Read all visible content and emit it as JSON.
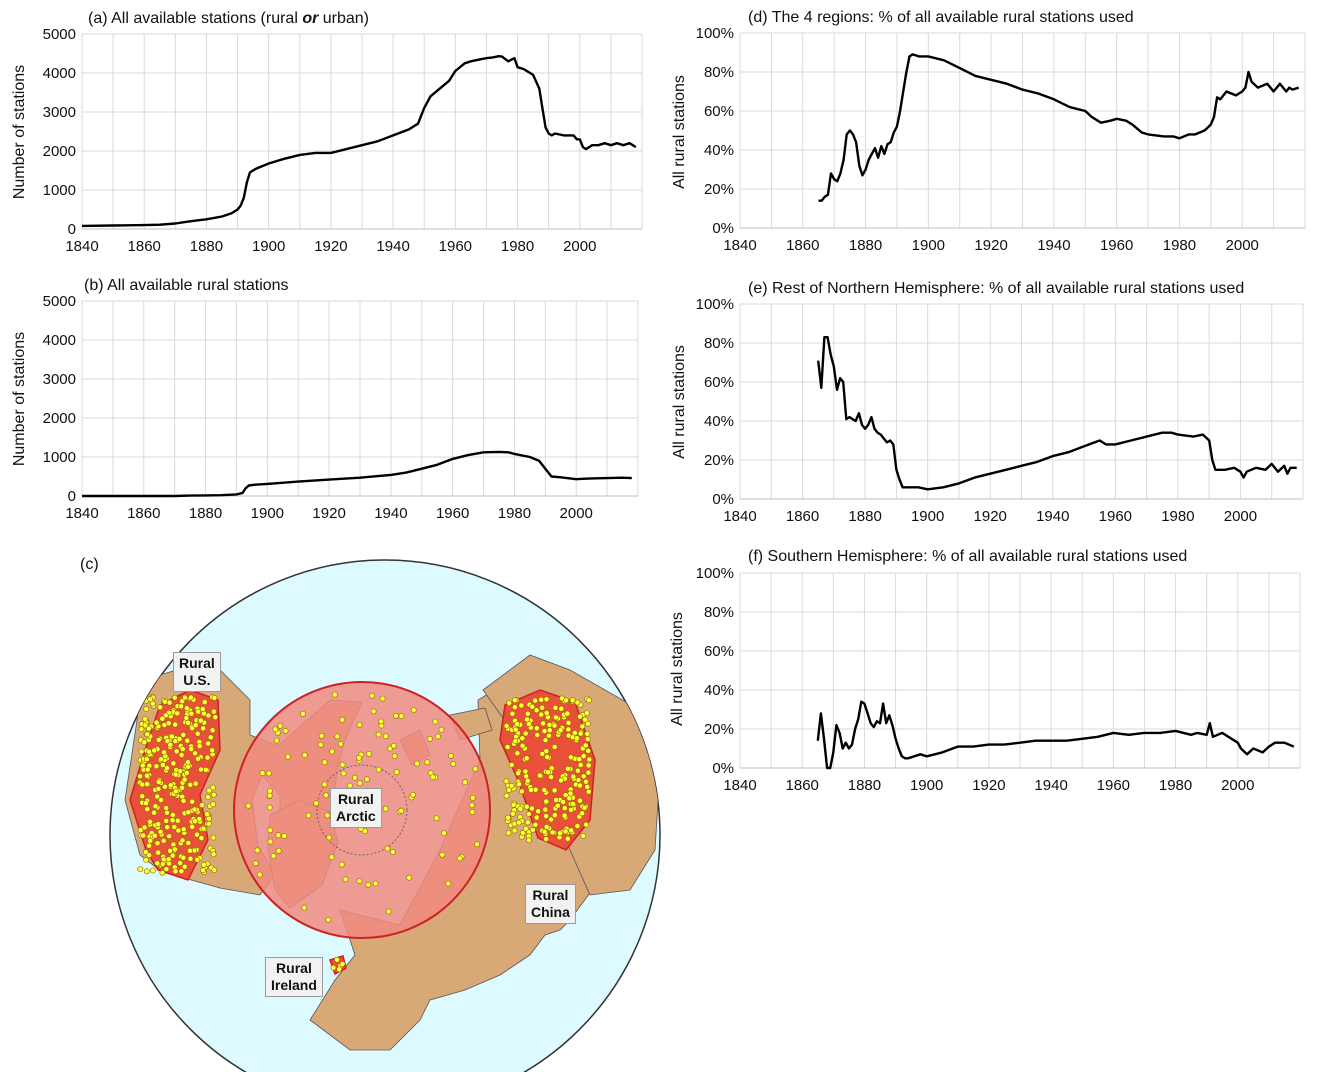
{
  "panels": {
    "a": {
      "title_prefix": "(a) All available stations (rural ",
      "title_em": "or",
      "title_suffix": " urban)",
      "ylabel": "Number of stations"
    },
    "b": {
      "title": "(b) All available rural stations",
      "ylabel": "Number of stations"
    },
    "c": {
      "label": "(c)"
    },
    "d": {
      "title": "(d) The 4 regions: % of all available rural stations used",
      "ylabel": "All rural stations"
    },
    "e": {
      "title": "(e) Rest of Northern Hemisphere: % of all available rural stations used",
      "ylabel": "All rural stations"
    },
    "f": {
      "title": "(f) Southern Hemisphere: % of all available rural stations used",
      "ylabel": "All rural stations"
    }
  },
  "map": {
    "labels": {
      "us": [
        "Rural",
        "U.S."
      ],
      "arctic": [
        "Rural",
        "Arctic"
      ],
      "ireland": [
        "Rural",
        "Ireland"
      ],
      "china": [
        "Rural",
        "China"
      ]
    },
    "colors": {
      "ocean": "#dcfaff",
      "land": "#d9a877",
      "region": "#e8503a",
      "arctic_disk": "#f08a80",
      "station": "#ffff33"
    }
  },
  "chart_data": [
    {
      "id": "a",
      "type": "line",
      "xlim": [
        1840,
        2020
      ],
      "ylim": [
        0,
        5000
      ],
      "xticks": [
        1840,
        1860,
        1880,
        1900,
        1920,
        1940,
        1960,
        1980,
        2000
      ],
      "yticks": [
        "0",
        "1000",
        "2000",
        "3000",
        "4000",
        "5000"
      ],
      "x": [
        1840,
        1850,
        1860,
        1865,
        1870,
        1875,
        1880,
        1885,
        1888,
        1890,
        1891,
        1892,
        1893,
        1894,
        1896,
        1900,
        1905,
        1910,
        1915,
        1920,
        1925,
        1930,
        1935,
        1940,
        1945,
        1948,
        1950,
        1952,
        1955,
        1958,
        1960,
        1963,
        1965,
        1968,
        1970,
        1972,
        1974,
        1975,
        1977,
        1979,
        1980,
        1982,
        1985,
        1987,
        1988,
        1989,
        1990,
        1991,
        1992,
        1995,
        1998,
        1999,
        2000,
        2001,
        2002,
        2004,
        2006,
        2008,
        2010,
        2012,
        2014,
        2016,
        2018
      ],
      "y": [
        80,
        90,
        100,
        110,
        140,
        200,
        250,
        320,
        400,
        500,
        600,
        800,
        1200,
        1450,
        1550,
        1680,
        1800,
        1900,
        1950,
        1950,
        2050,
        2150,
        2250,
        2400,
        2550,
        2700,
        3100,
        3400,
        3600,
        3800,
        4050,
        4250,
        4300,
        4350,
        4380,
        4400,
        4430,
        4420,
        4300,
        4380,
        4150,
        4100,
        3950,
        3600,
        3100,
        2600,
        2450,
        2400,
        2450,
        2400,
        2400,
        2300,
        2300,
        2100,
        2050,
        2150,
        2150,
        2200,
        2150,
        2200,
        2150,
        2200,
        2100
      ]
    },
    {
      "id": "b",
      "type": "line",
      "xlim": [
        1840,
        2020
      ],
      "ylim": [
        0,
        5000
      ],
      "xticks": [
        1840,
        1860,
        1880,
        1900,
        1920,
        1940,
        1960,
        1980,
        2000
      ],
      "yticks": [
        "0",
        "1000",
        "2000",
        "3000",
        "4000",
        "5000"
      ],
      "x": [
        1840,
        1870,
        1875,
        1880,
        1885,
        1890,
        1892,
        1893,
        1894,
        1896,
        1900,
        1910,
        1920,
        1930,
        1940,
        1945,
        1950,
        1955,
        1960,
        1965,
        1970,
        1975,
        1978,
        1980,
        1985,
        1988,
        1990,
        1992,
        1995,
        2000,
        2002,
        2005,
        2010,
        2015,
        2018
      ],
      "y": [
        0,
        0,
        10,
        15,
        20,
        40,
        80,
        200,
        270,
        290,
        310,
        370,
        420,
        470,
        540,
        600,
        700,
        800,
        950,
        1050,
        1120,
        1130,
        1120,
        1080,
        1000,
        900,
        700,
        500,
        480,
        430,
        440,
        450,
        460,
        470,
        460
      ]
    },
    {
      "id": "d",
      "type": "line",
      "xlim": [
        1840,
        2020
      ],
      "ylim": [
        0,
        100
      ],
      "xticks": [
        1840,
        1860,
        1880,
        1900,
        1920,
        1940,
        1960,
        1980,
        2000
      ],
      "yticks": [
        "0%",
        "20%",
        "40%",
        "60%",
        "80%",
        "100%"
      ],
      "x": [
        1865,
        1866,
        1867,
        1868,
        1869,
        1870,
        1871,
        1872,
        1873,
        1874,
        1875,
        1876,
        1877,
        1878,
        1879,
        1880,
        1881,
        1882,
        1883,
        1884,
        1885,
        1886,
        1887,
        1888,
        1889,
        1890,
        1891,
        1892,
        1893,
        1894,
        1895,
        1897,
        1900,
        1905,
        1910,
        1915,
        1920,
        1925,
        1930,
        1935,
        1940,
        1945,
        1950,
        1952,
        1955,
        1958,
        1960,
        1963,
        1965,
        1968,
        1970,
        1975,
        1978,
        1980,
        1983,
        1985,
        1988,
        1990,
        1991,
        1992,
        1993,
        1995,
        1998,
        2000,
        2001,
        2002,
        2003,
        2005,
        2008,
        2010,
        2012,
        2014,
        2015,
        2016,
        2018
      ],
      "y": [
        14,
        14,
        16,
        17,
        28,
        25,
        24,
        28,
        35,
        48,
        50,
        48,
        44,
        32,
        27,
        30,
        35,
        38,
        41,
        36,
        42,
        38,
        43,
        44,
        49,
        52,
        60,
        70,
        80,
        88,
        89,
        88,
        88,
        86,
        82,
        78,
        76,
        74,
        71,
        69,
        66,
        62,
        60,
        57,
        54,
        55,
        56,
        55,
        53,
        49,
        48,
        47,
        47,
        46,
        48,
        48,
        50,
        53,
        57,
        67,
        66,
        70,
        68,
        70,
        72,
        80,
        75,
        72,
        74,
        70,
        74,
        70,
        72,
        71,
        72
      ]
    },
    {
      "id": "e",
      "type": "line",
      "xlim": [
        1840,
        2020
      ],
      "ylim": [
        0,
        100
      ],
      "xticks": [
        1840,
        1860,
        1880,
        1900,
        1920,
        1940,
        1960,
        1980,
        2000
      ],
      "yticks": [
        "0%",
        "20%",
        "40%",
        "60%",
        "80%",
        "100%"
      ],
      "x": [
        1865,
        1866,
        1867,
        1868,
        1869,
        1870,
        1871,
        1872,
        1873,
        1874,
        1875,
        1876,
        1877,
        1878,
        1879,
        1880,
        1881,
        1882,
        1883,
        1884,
        1885,
        1886,
        1887,
        1888,
        1889,
        1890,
        1891,
        1892,
        1893,
        1894,
        1895,
        1897,
        1900,
        1905,
        1910,
        1915,
        1920,
        1925,
        1930,
        1935,
        1940,
        1945,
        1950,
        1955,
        1957,
        1960,
        1965,
        1970,
        1975,
        1978,
        1980,
        1985,
        1988,
        1990,
        1991,
        1992,
        1995,
        1998,
        2000,
        2001,
        2002,
        2005,
        2008,
        2010,
        2012,
        2014,
        2015,
        2016,
        2018
      ],
      "y": [
        71,
        57,
        83,
        83,
        74,
        68,
        56,
        62,
        60,
        41,
        42,
        41,
        40,
        44,
        38,
        36,
        38,
        42,
        36,
        34,
        33,
        31,
        29,
        30,
        28,
        15,
        10,
        6,
        6,
        6,
        6,
        6,
        5,
        6,
        8,
        11,
        13,
        15,
        17,
        19,
        22,
        24,
        27,
        30,
        28,
        28,
        30,
        32,
        34,
        34,
        33,
        32,
        33,
        30,
        20,
        15,
        15,
        16,
        14,
        11,
        14,
        16,
        15,
        18,
        14,
        17,
        13,
        16,
        16
      ]
    },
    {
      "id": "f",
      "type": "line",
      "xlim": [
        1840,
        2020
      ],
      "ylim": [
        0,
        100
      ],
      "xticks": [
        1840,
        1860,
        1880,
        1900,
        1920,
        1940,
        1960,
        1980,
        2000
      ],
      "yticks": [
        "0%",
        "20%",
        "40%",
        "60%",
        "80%",
        "100%"
      ],
      "x": [
        1865,
        1866,
        1867,
        1868,
        1869,
        1870,
        1871,
        1872,
        1873,
        1874,
        1875,
        1876,
        1877,
        1878,
        1879,
        1880,
        1881,
        1882,
        1883,
        1884,
        1885,
        1886,
        1887,
        1888,
        1889,
        1890,
        1891,
        1892,
        1893,
        1894,
        1896,
        1898,
        1900,
        1905,
        1910,
        1915,
        1920,
        1925,
        1930,
        1935,
        1940,
        1945,
        1950,
        1955,
        1960,
        1965,
        1970,
        1975,
        1980,
        1985,
        1987,
        1990,
        1991,
        1992,
        1995,
        1998,
        2000,
        2001,
        2003,
        2005,
        2008,
        2010,
        2012,
        2015,
        2018
      ],
      "y": [
        14,
        28,
        15,
        0,
        0,
        8,
        22,
        18,
        10,
        13,
        10,
        12,
        20,
        25,
        34,
        33,
        28,
        23,
        21,
        24,
        23,
        33,
        23,
        27,
        22,
        15,
        10,
        6,
        5,
        5,
        6,
        7,
        6,
        8,
        11,
        11,
        12,
        12,
        13,
        14,
        14,
        14,
        15,
        16,
        18,
        17,
        18,
        18,
        19,
        17,
        18,
        17,
        23,
        16,
        18,
        15,
        13,
        10,
        7,
        10,
        8,
        11,
        13,
        13,
        11
      ]
    }
  ]
}
